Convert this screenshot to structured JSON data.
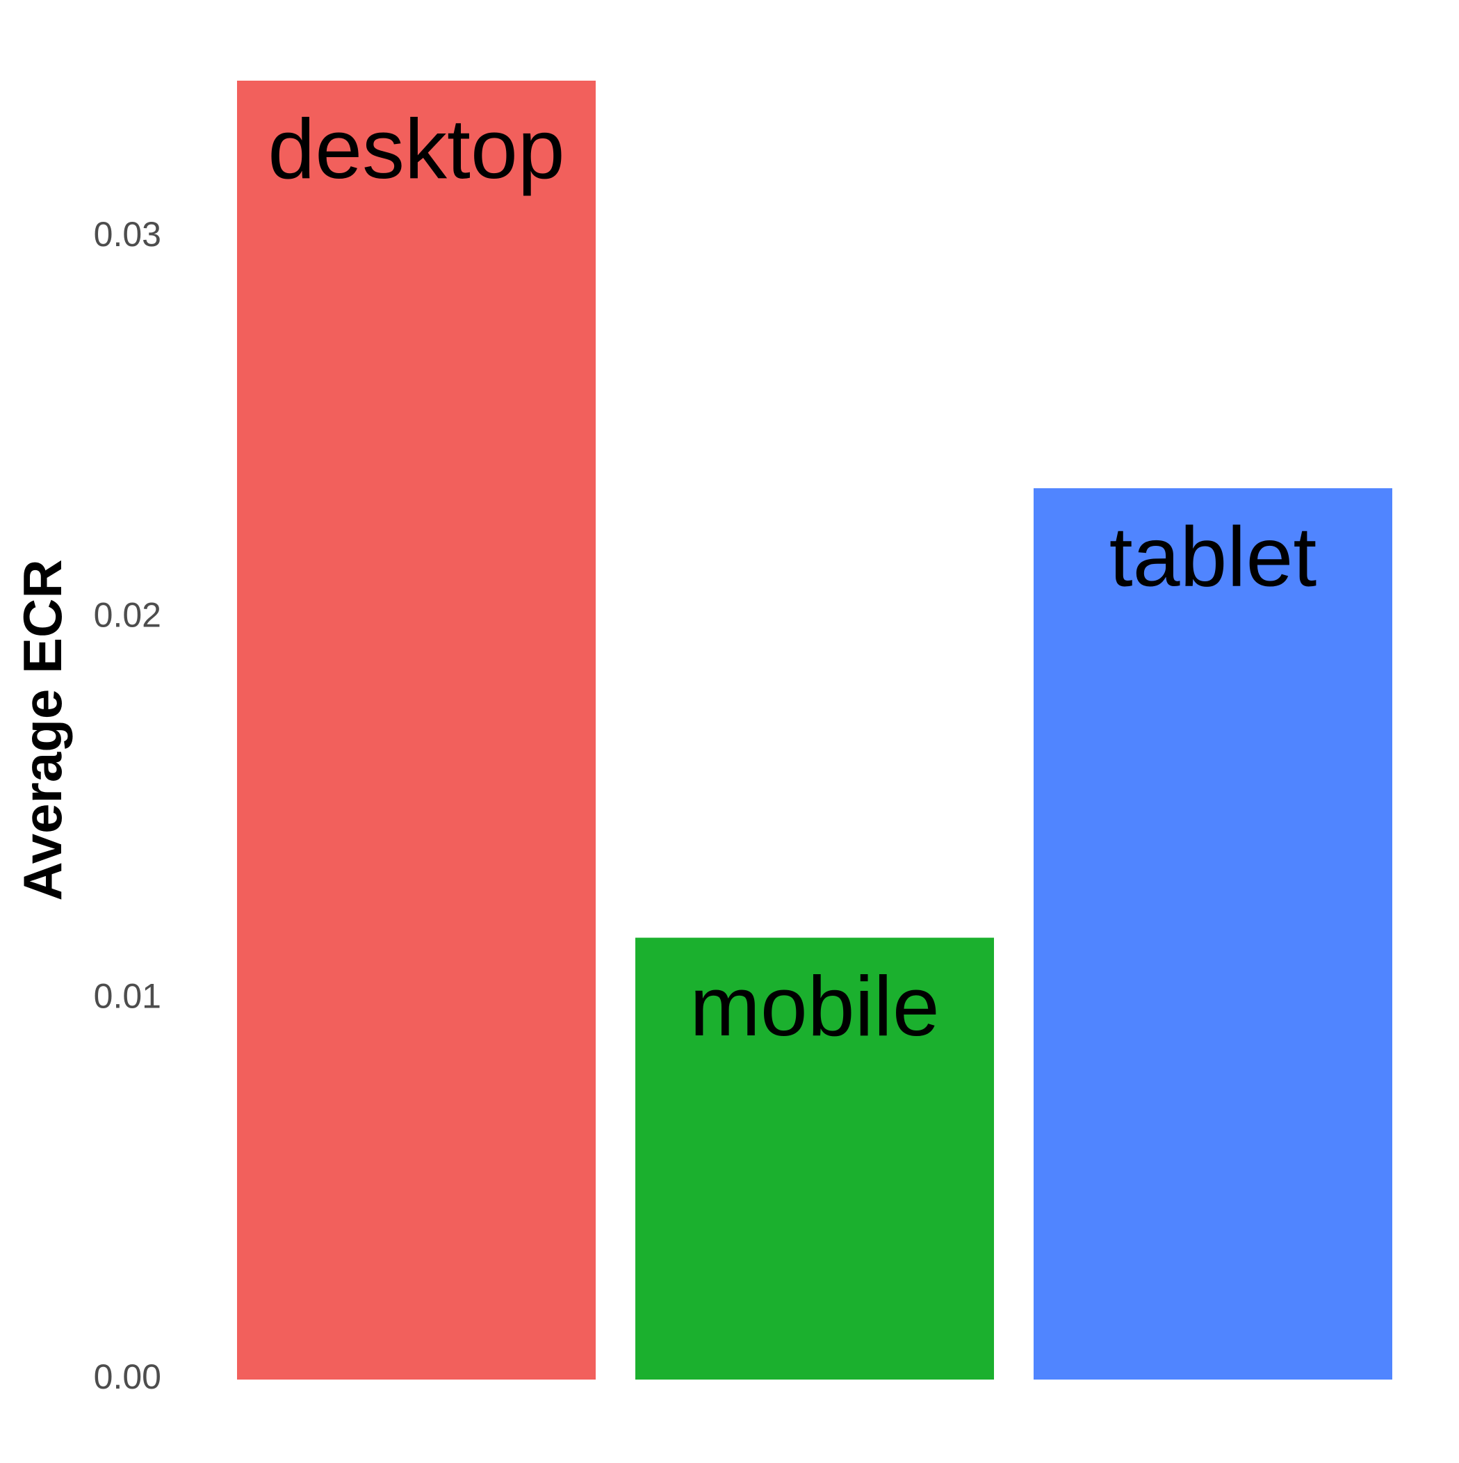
{
  "chart_data": {
    "type": "bar",
    "categories": [
      "desktop",
      "mobile",
      "tablet"
    ],
    "values": [
      0.0341,
      0.0116,
      0.0234
    ],
    "colors": [
      "#F2605C",
      "#1BB02E",
      "#5085FF"
    ],
    "ylabel": "Average ECR",
    "xlabel": "",
    "title": "",
    "ylim": [
      0,
      0.0341
    ],
    "yticks": [
      0.0,
      0.01,
      0.02,
      0.03
    ],
    "ytick_labels": [
      "0.00",
      "0.01",
      "0.02",
      "0.03"
    ],
    "grid": false,
    "legend": "none",
    "bar_labels_inside": true
  }
}
